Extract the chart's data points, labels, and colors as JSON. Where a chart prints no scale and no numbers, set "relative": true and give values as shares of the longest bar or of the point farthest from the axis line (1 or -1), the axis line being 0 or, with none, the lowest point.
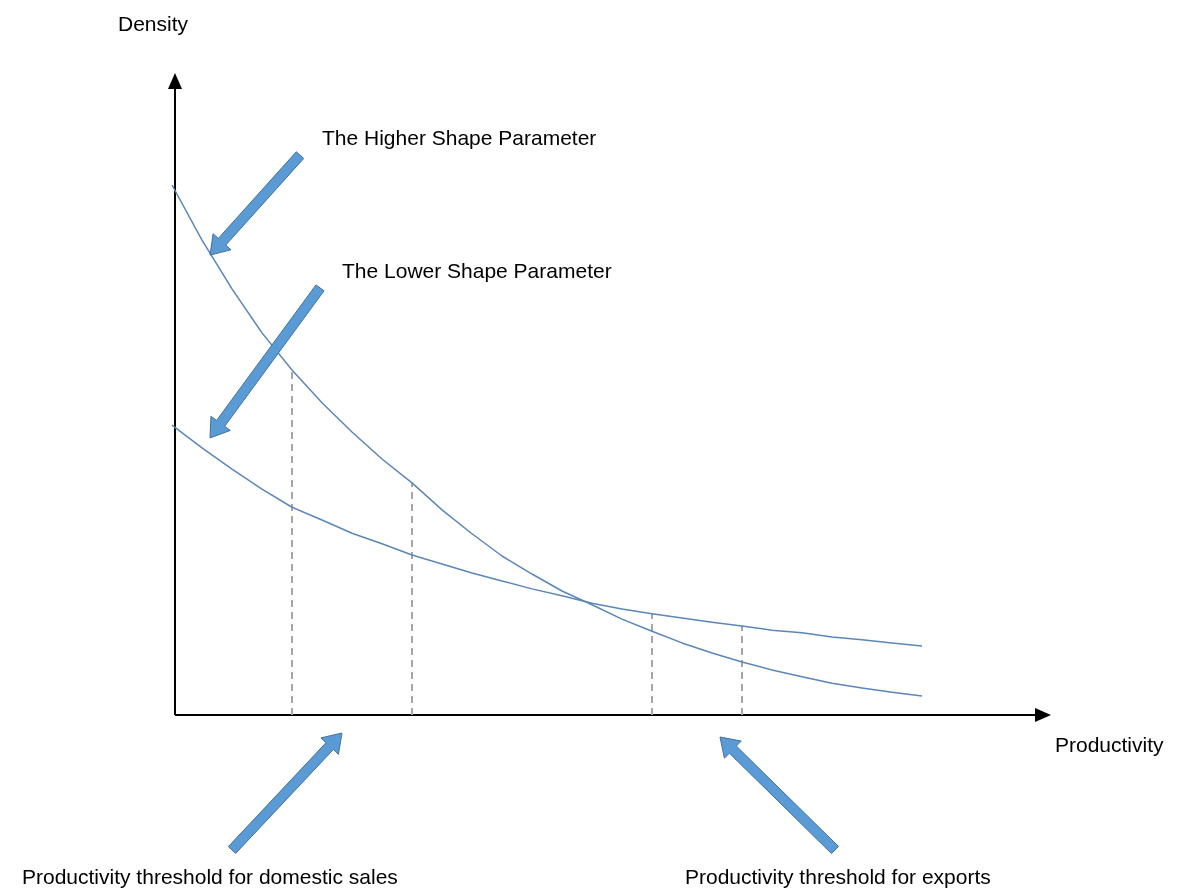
{
  "chart_data": {
    "type": "line",
    "relative": true,
    "categories": [
      null,
      null,
      null,
      null,
      null,
      null,
      null,
      null,
      null,
      null,
      null,
      null,
      null,
      null,
      null,
      null,
      null,
      null,
      null,
      null,
      null,
      null,
      null,
      null,
      null,
      null
    ],
    "series": [
      {
        "color": "#5b86b8",
        "values": [
          1,
          0.896,
          0.804,
          0.721,
          0.651,
          0.589,
          0.534,
          0.483,
          0.438,
          0.387,
          0.342,
          0.3,
          0.266,
          0.234,
          0.208,
          0.181,
          0.158,
          0.136,
          0.117,
          0.1,
          0.085,
          0.072,
          0.06,
          0.051,
          0.043,
          0.036
        ]
      },
      {
        "color": "#5b86b8",
        "values": [
          0.547,
          0.504,
          0.464,
          0.426,
          0.392,
          0.368,
          0.343,
          0.323,
          0.302,
          0.285,
          0.268,
          0.253,
          0.238,
          0.225,
          0.211,
          0.2,
          0.191,
          0.183,
          0.175,
          0.168,
          0.16,
          0.155,
          0.147,
          0.142,
          0.136,
          0.13
        ]
      }
    ],
    "annotations": [
      "The Higher Shape Parameter",
      "The Lower Shape Parameter",
      "Productivity threshold  for domestic sales",
      "Productivity threshold for exports",
      "Density",
      "Productivity"
    ]
  }
}
